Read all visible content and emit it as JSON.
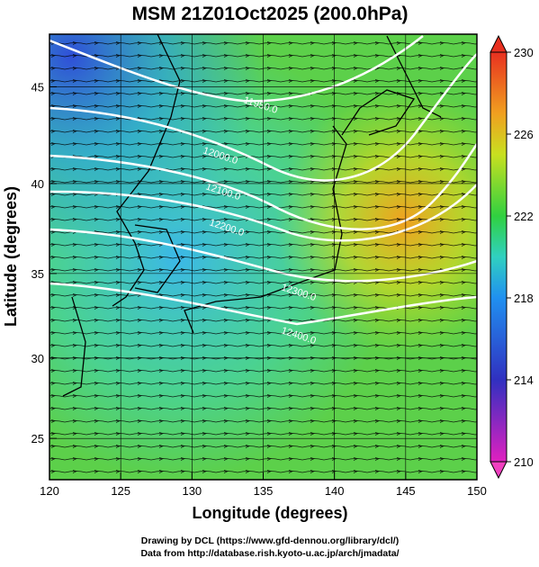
{
  "title": "MSM 21Z01Oct2025 (200.0hPa)",
  "x_axis": {
    "label": "Longitude (degrees)",
    "lim": [
      120,
      150
    ],
    "ticks": [
      120,
      125,
      130,
      135,
      140,
      145,
      150
    ]
  },
  "y_axis": {
    "label": "Latitude  (degrees)",
    "lim": [
      22.35,
      47.55
    ],
    "ticks": [
      25,
      30,
      35,
      40,
      45
    ]
  },
  "colorbar": {
    "lim": [
      210,
      230
    ],
    "ticks": [
      210,
      214,
      218,
      222,
      226,
      230
    ]
  },
  "contour_labels": [
    "11950.0",
    "12000.0",
    "12100.0",
    "12200.0",
    "12300.0",
    "12400.0"
  ],
  "footer": [
    "Drawing by DCL (https://www.gfd-dennou.org/library/dcl/)",
    "Data from http://database.rish.kyoto-u.ac.jp/arch/jmadata/"
  ]
}
